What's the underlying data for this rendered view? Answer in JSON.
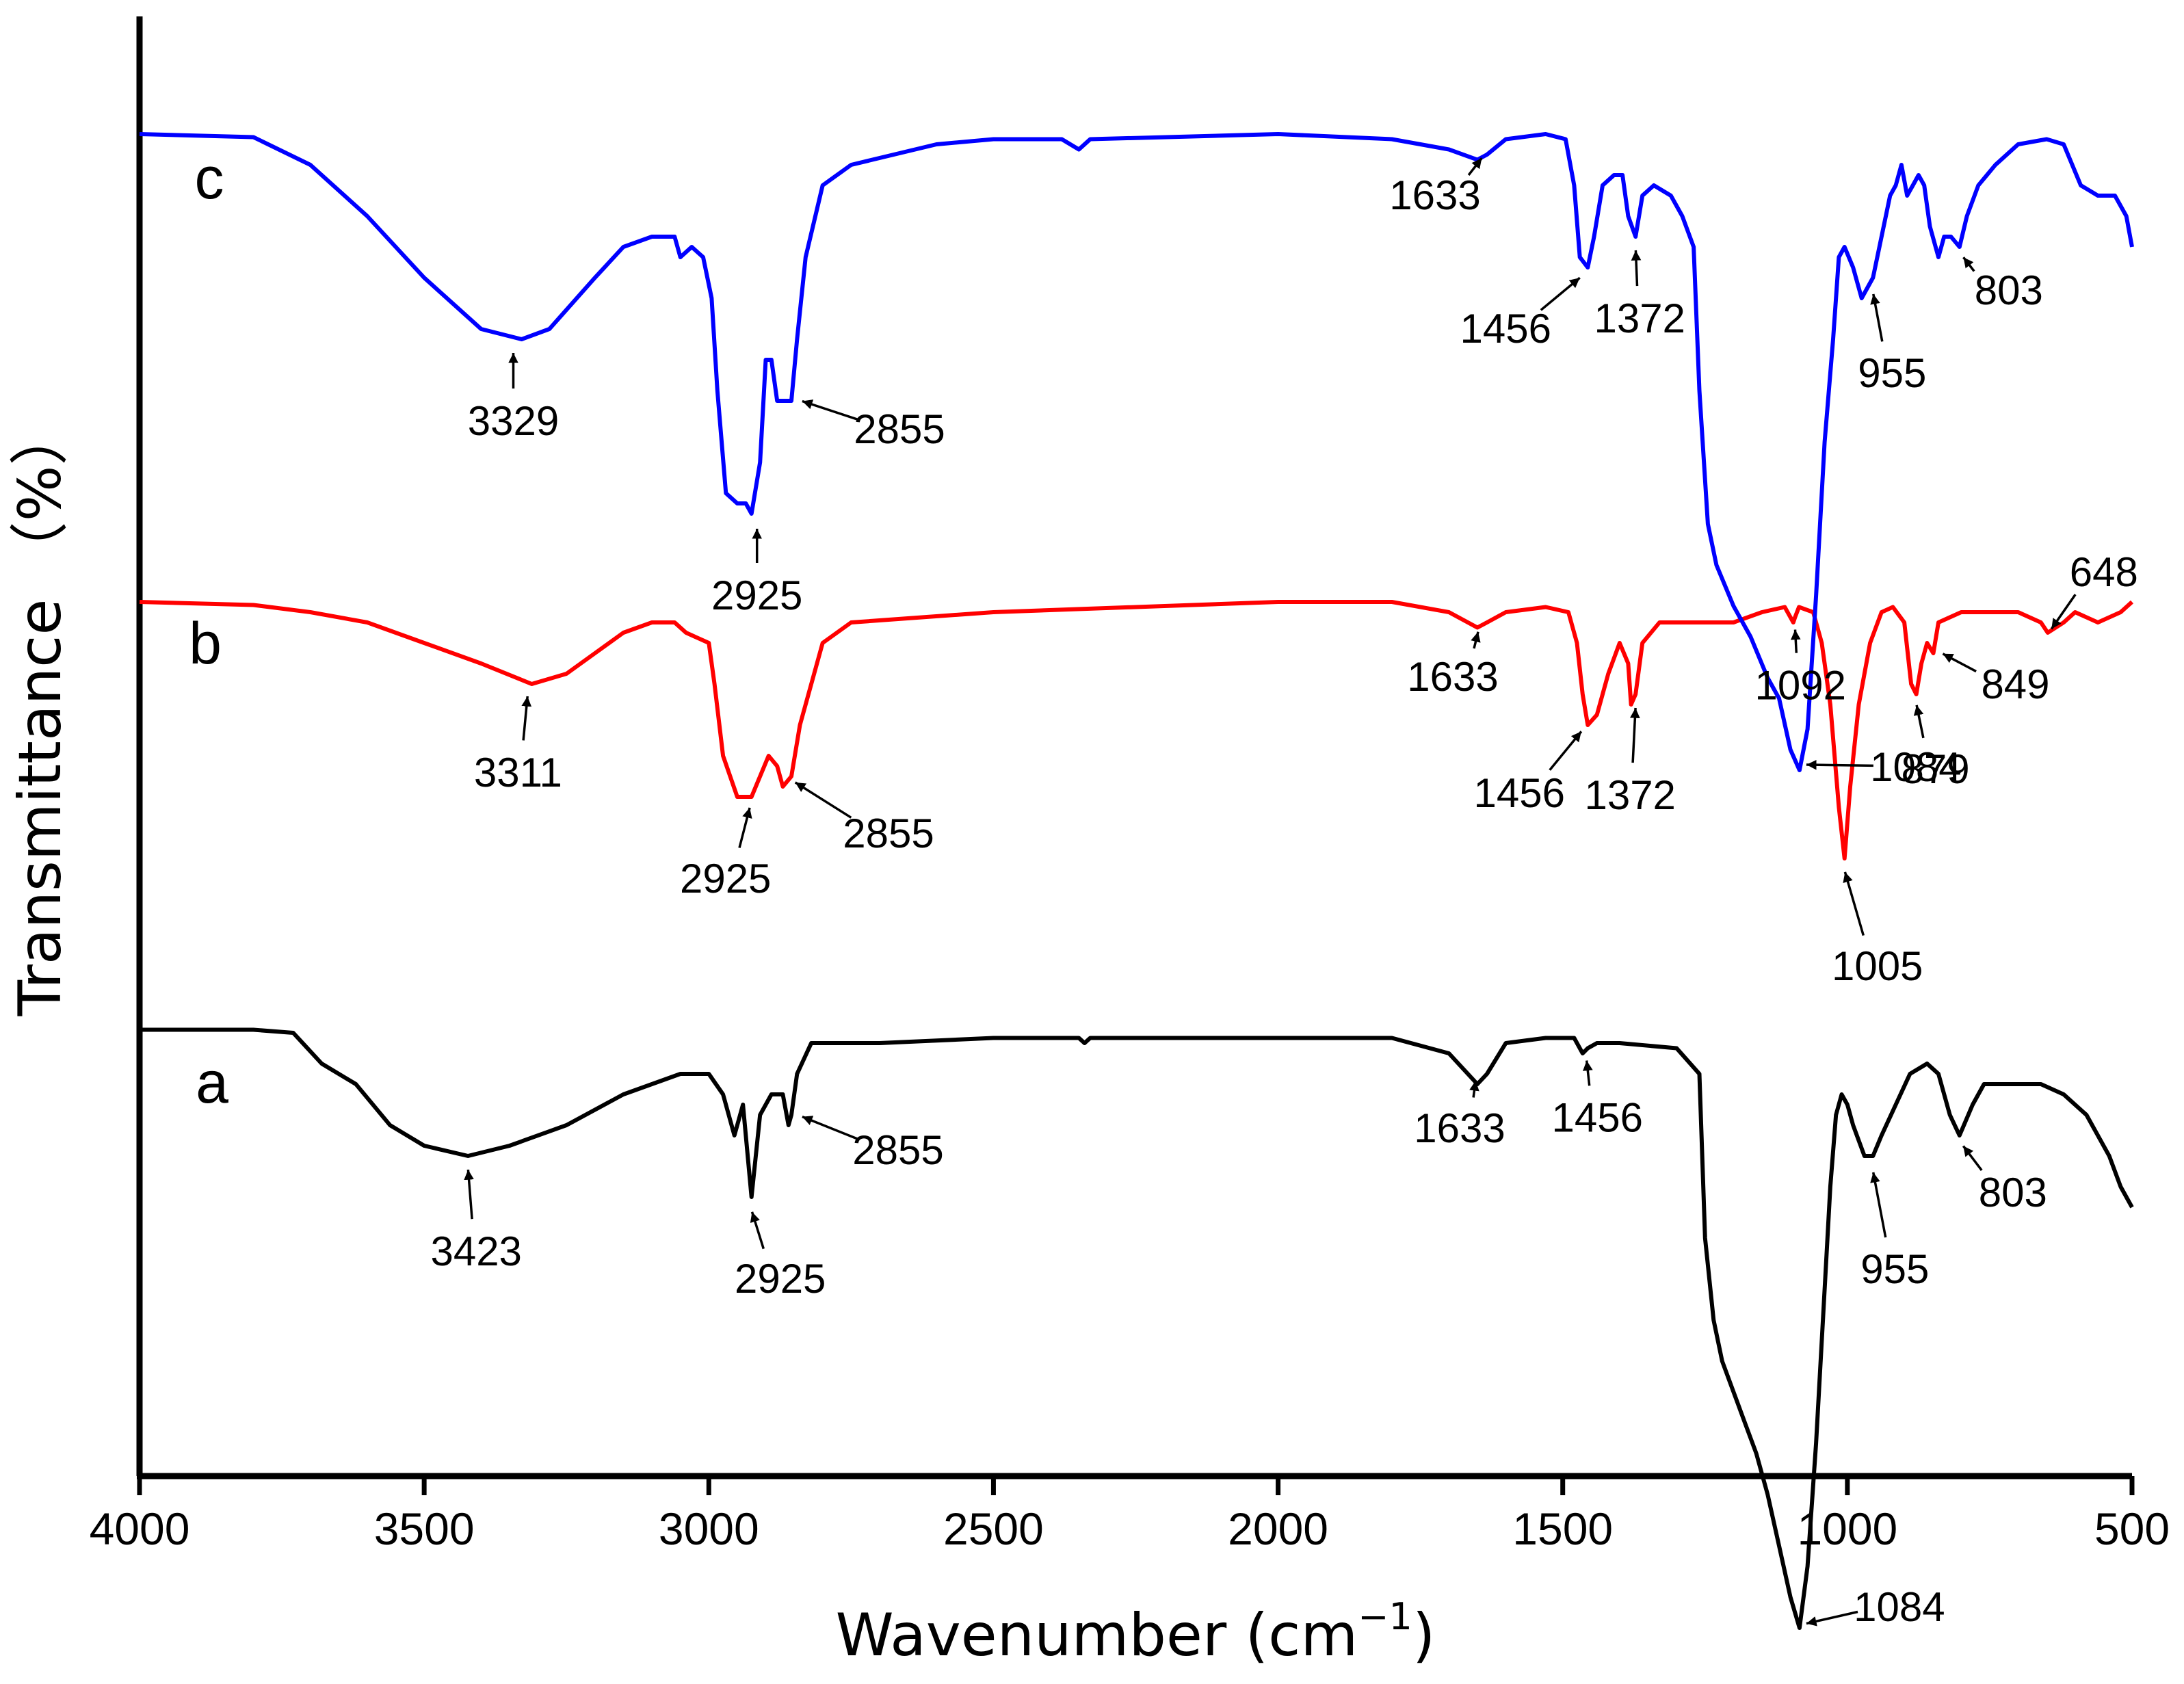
{
  "chart_data": {
    "type": "line",
    "title": "",
    "xlabel": "Wavenumber",
    "xunit": "cm",
    "xunit_exp": "−1",
    "ylabel": "Transmittance （%）",
    "xlim": [
      4000,
      500
    ],
    "x_ticks": [
      4000,
      3500,
      3000,
      2500,
      2000,
      1500,
      1000,
      500
    ],
    "y_ticks": [],
    "grid": false,
    "legend": "none",
    "series": [
      {
        "name": "a",
        "color": "#000000",
        "baseline": 0,
        "points": [
          [
            4000,
            0.3
          ],
          [
            3800,
            0.3
          ],
          [
            3730,
            0
          ],
          [
            3680,
            -3
          ],
          [
            3620,
            -5
          ],
          [
            3560,
            -9
          ],
          [
            3500,
            -11
          ],
          [
            3423,
            -12
          ],
          [
            3350,
            -11
          ],
          [
            3250,
            -9
          ],
          [
            3150,
            -6
          ],
          [
            3050,
            -4
          ],
          [
            3000,
            -4
          ],
          [
            2975,
            -6
          ],
          [
            2955,
            -10
          ],
          [
            2940,
            -7
          ],
          [
            2925,
            -16
          ],
          [
            2910,
            -8
          ],
          [
            2890,
            -6
          ],
          [
            2870,
            -6
          ],
          [
            2860,
            -9
          ],
          [
            2855,
            -8
          ],
          [
            2845,
            -4
          ],
          [
            2820,
            -1
          ],
          [
            2700,
            -1
          ],
          [
            2500,
            -0.5
          ],
          [
            2380,
            -0.5
          ],
          [
            2350,
            -0.5
          ],
          [
            2340,
            -1
          ],
          [
            2330,
            -0.5
          ],
          [
            2000,
            -0.5
          ],
          [
            1800,
            -0.5
          ],
          [
            1700,
            -2
          ],
          [
            1650,
            -5
          ],
          [
            1633,
            -4
          ],
          [
            1600,
            -1
          ],
          [
            1530,
            -0.5
          ],
          [
            1480,
            -0.5
          ],
          [
            1465,
            -2
          ],
          [
            1456,
            -1.5
          ],
          [
            1440,
            -1
          ],
          [
            1400,
            -1
          ],
          [
            1300,
            -1.5
          ],
          [
            1260,
            -4
          ],
          [
            1250,
            -20
          ],
          [
            1235,
            -28
          ],
          [
            1220,
            -32
          ],
          [
            1200,
            -35
          ],
          [
            1180,
            -38
          ],
          [
            1160,
            -41
          ],
          [
            1140,
            -45
          ],
          [
            1120,
            -50
          ],
          [
            1100,
            -55
          ],
          [
            1084,
            -58
          ],
          [
            1070,
            -52
          ],
          [
            1055,
            -40
          ],
          [
            1040,
            -25
          ],
          [
            1030,
            -15
          ],
          [
            1020,
            -8
          ],
          [
            1010,
            -6
          ],
          [
            1000,
            -7
          ],
          [
            990,
            -9
          ],
          [
            970,
            -12
          ],
          [
            955,
            -12
          ],
          [
            940,
            -10
          ],
          [
            915,
            -7
          ],
          [
            890,
            -4
          ],
          [
            860,
            -3
          ],
          [
            840,
            -4
          ],
          [
            820,
            -8
          ],
          [
            803,
            -10
          ],
          [
            780,
            -7
          ],
          [
            760,
            -5
          ],
          [
            730,
            -5
          ],
          [
            700,
            -5
          ],
          [
            660,
            -5
          ],
          [
            620,
            -6
          ],
          [
            580,
            -8
          ],
          [
            540,
            -12
          ],
          [
            520,
            -15
          ],
          [
            500,
            -17
          ]
        ]
      },
      {
        "name": "b",
        "color": "#ff0000",
        "baseline": 0,
        "points": [
          [
            4000,
            0
          ],
          [
            3800,
            -0.3
          ],
          [
            3700,
            -1
          ],
          [
            3600,
            -2
          ],
          [
            3500,
            -4
          ],
          [
            3400,
            -6
          ],
          [
            3311,
            -8
          ],
          [
            3250,
            -7
          ],
          [
            3200,
            -5
          ],
          [
            3150,
            -3
          ],
          [
            3100,
            -2
          ],
          [
            3060,
            -2
          ],
          [
            3040,
            -3
          ],
          [
            3000,
            -4
          ],
          [
            2990,
            -8
          ],
          [
            2975,
            -15
          ],
          [
            2950,
            -19
          ],
          [
            2925,
            -19
          ],
          [
            2910,
            -17
          ],
          [
            2895,
            -15
          ],
          [
            2880,
            -16
          ],
          [
            2870,
            -18
          ],
          [
            2855,
            -17
          ],
          [
            2840,
            -12
          ],
          [
            2820,
            -8
          ],
          [
            2800,
            -4
          ],
          [
            2750,
            -2
          ],
          [
            2500,
            -1
          ],
          [
            2000,
            0
          ],
          [
            1800,
            0
          ],
          [
            1700,
            -1
          ],
          [
            1650,
            -2.5
          ],
          [
            1633,
            -2
          ],
          [
            1600,
            -1
          ],
          [
            1530,
            -0.5
          ],
          [
            1490,
            -1
          ],
          [
            1475,
            -4
          ],
          [
            1465,
            -9
          ],
          [
            1456,
            -12
          ],
          [
            1440,
            -11
          ],
          [
            1420,
            -7
          ],
          [
            1400,
            -4
          ],
          [
            1385,
            -6
          ],
          [
            1380,
            -10
          ],
          [
            1372,
            -9
          ],
          [
            1360,
            -4
          ],
          [
            1330,
            -2
          ],
          [
            1300,
            -2
          ],
          [
            1250,
            -2
          ],
          [
            1200,
            -2
          ],
          [
            1150,
            -1
          ],
          [
            1110,
            -0.5
          ],
          [
            1095,
            -2
          ],
          [
            1092,
            -1.5
          ],
          [
            1085,
            -0.5
          ],
          [
            1060,
            -1
          ],
          [
            1045,
            -4
          ],
          [
            1030,
            -10
          ],
          [
            1015,
            -20
          ],
          [
            1005,
            -25
          ],
          [
            995,
            -18
          ],
          [
            980,
            -10
          ],
          [
            960,
            -4
          ],
          [
            940,
            -1
          ],
          [
            920,
            -0.5
          ],
          [
            900,
            -2
          ],
          [
            888,
            -8
          ],
          [
            879,
            -9
          ],
          [
            870,
            -6
          ],
          [
            860,
            -4
          ],
          [
            849,
            -5
          ],
          [
            840,
            -2
          ],
          [
            800,
            -1
          ],
          [
            760,
            -1
          ],
          [
            700,
            -1
          ],
          [
            660,
            -2
          ],
          [
            648,
            -3
          ],
          [
            620,
            -2
          ],
          [
            600,
            -1
          ],
          [
            560,
            -2
          ],
          [
            520,
            -1
          ],
          [
            500,
            0
          ]
        ]
      },
      {
        "name": "c",
        "color": "#0000ff",
        "baseline": 0,
        "points": [
          [
            4000,
            0
          ],
          [
            3800,
            -0.3
          ],
          [
            3700,
            -3
          ],
          [
            3600,
            -8
          ],
          [
            3500,
            -14
          ],
          [
            3400,
            -19
          ],
          [
            3329,
            -20
          ],
          [
            3280,
            -19
          ],
          [
            3200,
            -14
          ],
          [
            3150,
            -11
          ],
          [
            3100,
            -10
          ],
          [
            3060,
            -10
          ],
          [
            3050,
            -12
          ],
          [
            3030,
            -11
          ],
          [
            3010,
            -12
          ],
          [
            2995,
            -16
          ],
          [
            2985,
            -25
          ],
          [
            2970,
            -35
          ],
          [
            2950,
            -36
          ],
          [
            2935,
            -36
          ],
          [
            2925,
            -37
          ],
          [
            2910,
            -32
          ],
          [
            2900,
            -22
          ],
          [
            2890,
            -22
          ],
          [
            2880,
            -26
          ],
          [
            2855,
            -26
          ],
          [
            2845,
            -20
          ],
          [
            2830,
            -12
          ],
          [
            2800,
            -5
          ],
          [
            2750,
            -3
          ],
          [
            2600,
            -1
          ],
          [
            2500,
            -0.5
          ],
          [
            2380,
            -0.5
          ],
          [
            2350,
            -1.5
          ],
          [
            2330,
            -0.5
          ],
          [
            2000,
            0
          ],
          [
            1800,
            -0.5
          ],
          [
            1700,
            -1.5
          ],
          [
            1650,
            -2.5
          ],
          [
            1633,
            -2
          ],
          [
            1600,
            -0.5
          ],
          [
            1530,
            0
          ],
          [
            1495,
            -0.5
          ],
          [
            1480,
            -5
          ],
          [
            1470,
            -12
          ],
          [
            1456,
            -13
          ],
          [
            1445,
            -10
          ],
          [
            1430,
            -5
          ],
          [
            1410,
            -4
          ],
          [
            1395,
            -4
          ],
          [
            1385,
            -8
          ],
          [
            1372,
            -10
          ],
          [
            1360,
            -6
          ],
          [
            1340,
            -5
          ],
          [
            1310,
            -6
          ],
          [
            1290,
            -8
          ],
          [
            1270,
            -11
          ],
          [
            1260,
            -25
          ],
          [
            1245,
            -38
          ],
          [
            1230,
            -42
          ],
          [
            1200,
            -46
          ],
          [
            1170,
            -49
          ],
          [
            1140,
            -53
          ],
          [
            1120,
            -55
          ],
          [
            1100,
            -60
          ],
          [
            1084,
            -62
          ],
          [
            1070,
            -58
          ],
          [
            1055,
            -45
          ],
          [
            1040,
            -30
          ],
          [
            1025,
            -20
          ],
          [
            1015,
            -12
          ],
          [
            1005,
            -11
          ],
          [
            990,
            -13
          ],
          [
            975,
            -16
          ],
          [
            955,
            -14
          ],
          [
            940,
            -10
          ],
          [
            925,
            -6
          ],
          [
            915,
            -5
          ],
          [
            905,
            -3
          ],
          [
            895,
            -6
          ],
          [
            885,
            -5
          ],
          [
            875,
            -4
          ],
          [
            865,
            -5
          ],
          [
            855,
            -9
          ],
          [
            840,
            -12
          ],
          [
            830,
            -10
          ],
          [
            818,
            -10
          ],
          [
            803,
            -11
          ],
          [
            790,
            -8
          ],
          [
            770,
            -5
          ],
          [
            740,
            -3
          ],
          [
            700,
            -1
          ],
          [
            650,
            -0.5
          ],
          [
            620,
            -1
          ],
          [
            590,
            -5
          ],
          [
            560,
            -6
          ],
          [
            530,
            -6
          ],
          [
            510,
            -8
          ],
          [
            500,
            -11
          ]
        ]
      }
    ],
    "annotations": [
      {
        "series": "c",
        "label": "3329",
        "x": 3329
      },
      {
        "series": "c",
        "label": "2925",
        "x": 2925
      },
      {
        "series": "c",
        "label": "2855",
        "x": 2855
      },
      {
        "series": "c",
        "label": "1633",
        "x": 1633
      },
      {
        "series": "c",
        "label": "1456",
        "x": 1456
      },
      {
        "series": "c",
        "label": "1372",
        "x": 1372
      },
      {
        "series": "c",
        "label": "1084",
        "x": 1084
      },
      {
        "series": "c",
        "label": "955",
        "x": 955
      },
      {
        "series": "c",
        "label": "803",
        "x": 803
      },
      {
        "series": "b",
        "label": "3311",
        "x": 3311
      },
      {
        "series": "b",
        "label": "2925",
        "x": 2925
      },
      {
        "series": "b",
        "label": "2855",
        "x": 2855
      },
      {
        "series": "b",
        "label": "1633",
        "x": 1633
      },
      {
        "series": "b",
        "label": "1456",
        "x": 1456
      },
      {
        "series": "b",
        "label": "1372",
        "x": 1372
      },
      {
        "series": "b",
        "label": "1092",
        "x": 1092
      },
      {
        "series": "b",
        "label": "1005",
        "x": 1005
      },
      {
        "series": "b",
        "label": "879",
        "x": 879
      },
      {
        "series": "b",
        "label": "849",
        "x": 849
      },
      {
        "series": "b",
        "label": "648",
        "x": 648
      },
      {
        "series": "a",
        "label": "3423",
        "x": 3423
      },
      {
        "series": "a",
        "label": "2925",
        "x": 2925
      },
      {
        "series": "a",
        "label": "2855",
        "x": 2855
      },
      {
        "series": "a",
        "label": "1633",
        "x": 1633
      },
      {
        "series": "a",
        "label": "1456",
        "x": 1456
      },
      {
        "series": "a",
        "label": "1084",
        "x": 1084
      },
      {
        "series": "a",
        "label": "955",
        "x": 955
      },
      {
        "series": "a",
        "label": "803",
        "x": 803
      }
    ]
  }
}
